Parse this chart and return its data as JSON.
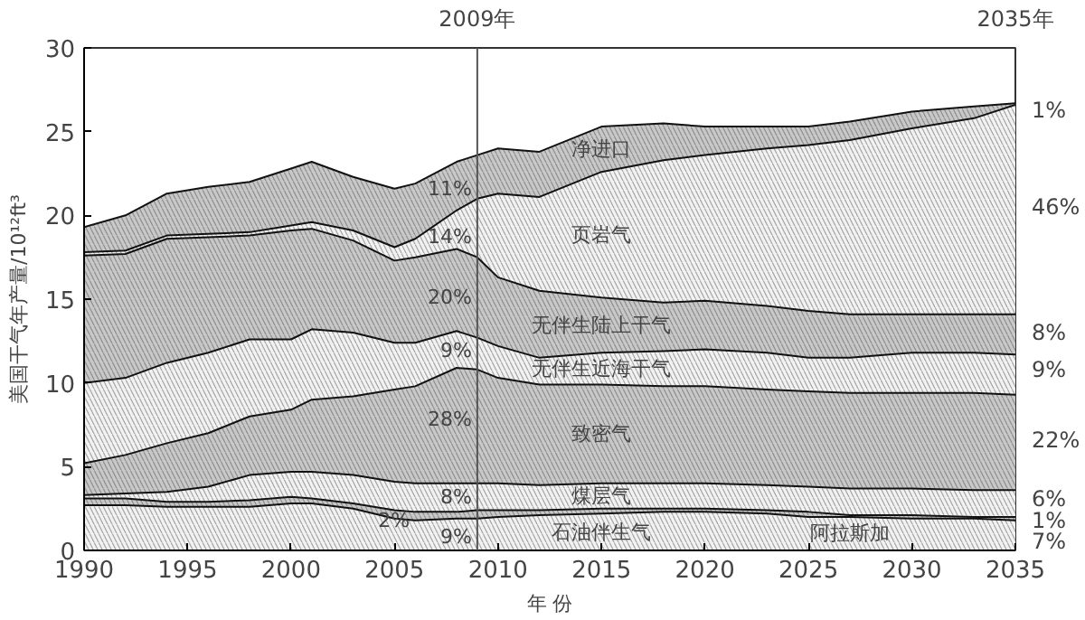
{
  "chart_data": {
    "type": "area",
    "stacked": true,
    "xlabel": "年 份",
    "ylabel": "美国干气年产量/10¹²ft³",
    "x": [
      1990,
      1992,
      1994,
      1996,
      1998,
      2000,
      2001,
      2003,
      2005,
      2006,
      2008,
      2009,
      2010,
      2012,
      2015,
      2018,
      2020,
      2023,
      2025,
      2027,
      2030,
      2033,
      2035
    ],
    "xlim": [
      1990,
      2035
    ],
    "ylim": [
      0,
      30
    ],
    "xticks": [
      1990,
      1995,
      2000,
      2005,
      2010,
      2015,
      2020,
      2025,
      2030,
      2035
    ],
    "yticks": [
      0,
      5,
      10,
      15,
      20,
      25,
      30
    ],
    "grid": false,
    "series": [
      {
        "name": "石油伴生气",
        "color": "#f2f2f2",
        "values": [
          2.7,
          2.7,
          2.6,
          2.6,
          2.6,
          2.8,
          2.8,
          2.5,
          1.9,
          1.8,
          1.9,
          1.9,
          2.0,
          2.1,
          2.2,
          2.3,
          2.3,
          2.2,
          2.0,
          2.0,
          1.9,
          1.9,
          1.8
        ]
      },
      {
        "name": "阿拉斯加",
        "color": "#c8c8c8",
        "values": [
          0.4,
          0.4,
          0.3,
          0.3,
          0.4,
          0.4,
          0.3,
          0.3,
          0.5,
          0.5,
          0.4,
          0.5,
          0.4,
          0.3,
          0.3,
          0.2,
          0.2,
          0.2,
          0.3,
          0.1,
          0.2,
          0.1,
          0.2
        ]
      },
      {
        "name": "煤层气",
        "color": "#f2f2f2",
        "values": [
          0.2,
          0.3,
          0.6,
          0.9,
          1.5,
          1.5,
          1.6,
          1.7,
          1.7,
          1.7,
          1.7,
          1.6,
          1.6,
          1.5,
          1.5,
          1.5,
          1.5,
          1.5,
          1.5,
          1.6,
          1.6,
          1.6,
          1.6
        ]
      },
      {
        "name": "致密气",
        "color": "#c8c8c8",
        "values": [
          1.9,
          2.3,
          2.9,
          3.2,
          3.5,
          3.7,
          4.3,
          4.7,
          5.5,
          5.8,
          6.9,
          6.8,
          6.3,
          6.0,
          5.9,
          5.8,
          5.8,
          5.7,
          5.7,
          5.7,
          5.7,
          5.8,
          5.7
        ]
      },
      {
        "name": "无伴生近海干气",
        "color": "#f2f2f2",
        "values": [
          4.8,
          4.6,
          4.8,
          4.8,
          4.6,
          4.2,
          4.2,
          3.8,
          2.8,
          2.6,
          2.2,
          1.9,
          1.9,
          1.6,
          1.9,
          2.1,
          2.2,
          2.2,
          2.0,
          2.1,
          2.4,
          2.4,
          2.4
        ]
      },
      {
        "name": "无伴生陆上干气",
        "color": "#c8c8c8",
        "values": [
          7.6,
          7.4,
          7.4,
          6.9,
          6.2,
          6.5,
          6.0,
          5.5,
          4.9,
          5.1,
          4.9,
          4.8,
          4.1,
          4.0,
          3.3,
          2.9,
          2.9,
          2.8,
          2.8,
          2.6,
          2.3,
          2.3,
          2.4
        ]
      },
      {
        "name": "页岩气",
        "color": "#f2f2f2",
        "values": [
          0.2,
          0.2,
          0.2,
          0.2,
          0.2,
          0.3,
          0.4,
          0.6,
          0.8,
          1.1,
          2.3,
          3.5,
          5.0,
          5.6,
          7.5,
          8.5,
          8.7,
          9.4,
          9.9,
          10.4,
          11.1,
          11.7,
          12.5
        ]
      },
      {
        "name": "净进口",
        "color": "#c8c8c8",
        "values": [
          1.5,
          2.1,
          2.5,
          2.8,
          3.0,
          3.4,
          3.6,
          3.2,
          3.5,
          3.3,
          2.9,
          2.6,
          2.7,
          2.7,
          2.7,
          2.2,
          1.7,
          1.3,
          1.1,
          1.1,
          1.0,
          0.7,
          0.1
        ]
      }
    ],
    "ref_lines": [
      {
        "axis": "x",
        "value": 2009,
        "label": "2009年",
        "color": "#555555"
      }
    ],
    "annotations": [
      "2035年",
      {
        "text": "11%",
        "x": 2009,
        "y": 21.6
      },
      {
        "text": "14%",
        "x": 2009,
        "y": 18.7
      },
      {
        "text": "20%",
        "x": 2009,
        "y": 15.1
      },
      {
        "text": "9%",
        "x": 2009,
        "y": 11.9
      },
      {
        "text": "28%",
        "x": 2009,
        "y": 7.8
      },
      {
        "text": "8%",
        "x": 2009,
        "y": 3.2
      },
      {
        "text": "9%",
        "x": 2009,
        "y": 0.8
      },
      {
        "text": "2%",
        "x": 2006,
        "y": 1.8
      },
      {
        "text": "1%",
        "x": 2035,
        "y": 26.3
      },
      {
        "text": "46%",
        "x": 2035,
        "y": 20.5
      },
      {
        "text": "8%",
        "x": 2035,
        "y": 13.0
      },
      {
        "text": "9%",
        "x": 2035,
        "y": 10.8
      },
      {
        "text": "22%",
        "x": 2035,
        "y": 6.6
      },
      {
        "text": "6%",
        "x": 2035,
        "y": 3.1
      },
      {
        "text": "1%",
        "x": 2035,
        "y": 1.8
      },
      {
        "text": "7%",
        "x": 2035,
        "y": 0.55
      }
    ]
  }
}
